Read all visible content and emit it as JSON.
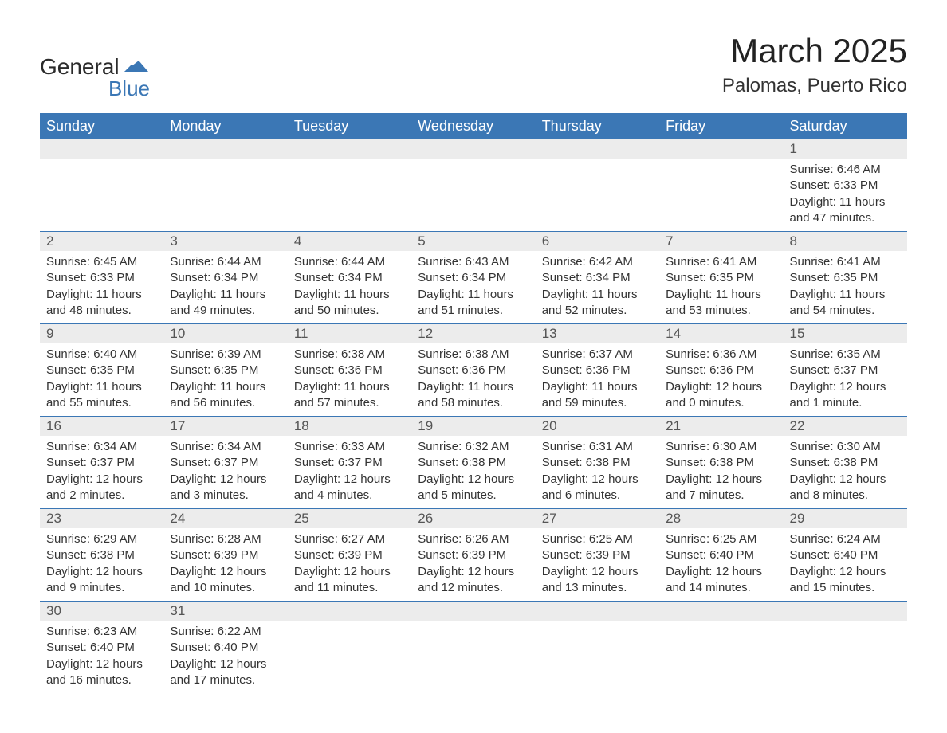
{
  "logo": {
    "text_general": "General",
    "text_blue": "Blue",
    "accent_color": "#3b77b5"
  },
  "title": "March 2025",
  "location": "Palomas, Puerto Rico",
  "colors": {
    "header_bg": "#3b77b5",
    "header_text": "#ffffff",
    "daynum_bg": "#ececec",
    "daynum_text": "#555555",
    "body_text": "#333333",
    "row_border": "#3b77b5",
    "page_bg": "#ffffff"
  },
  "typography": {
    "title_fontsize": 42,
    "location_fontsize": 24,
    "header_fontsize": 18,
    "daynum_fontsize": 17,
    "body_fontsize": 15
  },
  "layout": {
    "columns": 7,
    "rows": 6,
    "first_day_column_index": 6
  },
  "day_headers": [
    "Sunday",
    "Monday",
    "Tuesday",
    "Wednesday",
    "Thursday",
    "Friday",
    "Saturday"
  ],
  "labels": {
    "sunrise": "Sunrise",
    "sunset": "Sunset",
    "daylight": "Daylight"
  },
  "weeks": [
    [
      null,
      null,
      null,
      null,
      null,
      null,
      {
        "n": "1",
        "sunrise": "6:46 AM",
        "sunset": "6:33 PM",
        "daylight": "11 hours and 47 minutes."
      }
    ],
    [
      {
        "n": "2",
        "sunrise": "6:45 AM",
        "sunset": "6:33 PM",
        "daylight": "11 hours and 48 minutes."
      },
      {
        "n": "3",
        "sunrise": "6:44 AM",
        "sunset": "6:34 PM",
        "daylight": "11 hours and 49 minutes."
      },
      {
        "n": "4",
        "sunrise": "6:44 AM",
        "sunset": "6:34 PM",
        "daylight": "11 hours and 50 minutes."
      },
      {
        "n": "5",
        "sunrise": "6:43 AM",
        "sunset": "6:34 PM",
        "daylight": "11 hours and 51 minutes."
      },
      {
        "n": "6",
        "sunrise": "6:42 AM",
        "sunset": "6:34 PM",
        "daylight": "11 hours and 52 minutes."
      },
      {
        "n": "7",
        "sunrise": "6:41 AM",
        "sunset": "6:35 PM",
        "daylight": "11 hours and 53 minutes."
      },
      {
        "n": "8",
        "sunrise": "6:41 AM",
        "sunset": "6:35 PM",
        "daylight": "11 hours and 54 minutes."
      }
    ],
    [
      {
        "n": "9",
        "sunrise": "6:40 AM",
        "sunset": "6:35 PM",
        "daylight": "11 hours and 55 minutes."
      },
      {
        "n": "10",
        "sunrise": "6:39 AM",
        "sunset": "6:35 PM",
        "daylight": "11 hours and 56 minutes."
      },
      {
        "n": "11",
        "sunrise": "6:38 AM",
        "sunset": "6:36 PM",
        "daylight": "11 hours and 57 minutes."
      },
      {
        "n": "12",
        "sunrise": "6:38 AM",
        "sunset": "6:36 PM",
        "daylight": "11 hours and 58 minutes."
      },
      {
        "n": "13",
        "sunrise": "6:37 AM",
        "sunset": "6:36 PM",
        "daylight": "11 hours and 59 minutes."
      },
      {
        "n": "14",
        "sunrise": "6:36 AM",
        "sunset": "6:36 PM",
        "daylight": "12 hours and 0 minutes."
      },
      {
        "n": "15",
        "sunrise": "6:35 AM",
        "sunset": "6:37 PM",
        "daylight": "12 hours and 1 minute."
      }
    ],
    [
      {
        "n": "16",
        "sunrise": "6:34 AM",
        "sunset": "6:37 PM",
        "daylight": "12 hours and 2 minutes."
      },
      {
        "n": "17",
        "sunrise": "6:34 AM",
        "sunset": "6:37 PM",
        "daylight": "12 hours and 3 minutes."
      },
      {
        "n": "18",
        "sunrise": "6:33 AM",
        "sunset": "6:37 PM",
        "daylight": "12 hours and 4 minutes."
      },
      {
        "n": "19",
        "sunrise": "6:32 AM",
        "sunset": "6:38 PM",
        "daylight": "12 hours and 5 minutes."
      },
      {
        "n": "20",
        "sunrise": "6:31 AM",
        "sunset": "6:38 PM",
        "daylight": "12 hours and 6 minutes."
      },
      {
        "n": "21",
        "sunrise": "6:30 AM",
        "sunset": "6:38 PM",
        "daylight": "12 hours and 7 minutes."
      },
      {
        "n": "22",
        "sunrise": "6:30 AM",
        "sunset": "6:38 PM",
        "daylight": "12 hours and 8 minutes."
      }
    ],
    [
      {
        "n": "23",
        "sunrise": "6:29 AM",
        "sunset": "6:38 PM",
        "daylight": "12 hours and 9 minutes."
      },
      {
        "n": "24",
        "sunrise": "6:28 AM",
        "sunset": "6:39 PM",
        "daylight": "12 hours and 10 minutes."
      },
      {
        "n": "25",
        "sunrise": "6:27 AM",
        "sunset": "6:39 PM",
        "daylight": "12 hours and 11 minutes."
      },
      {
        "n": "26",
        "sunrise": "6:26 AM",
        "sunset": "6:39 PM",
        "daylight": "12 hours and 12 minutes."
      },
      {
        "n": "27",
        "sunrise": "6:25 AM",
        "sunset": "6:39 PM",
        "daylight": "12 hours and 13 minutes."
      },
      {
        "n": "28",
        "sunrise": "6:25 AM",
        "sunset": "6:40 PM",
        "daylight": "12 hours and 14 minutes."
      },
      {
        "n": "29",
        "sunrise": "6:24 AM",
        "sunset": "6:40 PM",
        "daylight": "12 hours and 15 minutes."
      }
    ],
    [
      {
        "n": "30",
        "sunrise": "6:23 AM",
        "sunset": "6:40 PM",
        "daylight": "12 hours and 16 minutes."
      },
      {
        "n": "31",
        "sunrise": "6:22 AM",
        "sunset": "6:40 PM",
        "daylight": "12 hours and 17 minutes."
      },
      null,
      null,
      null,
      null,
      null
    ]
  ]
}
